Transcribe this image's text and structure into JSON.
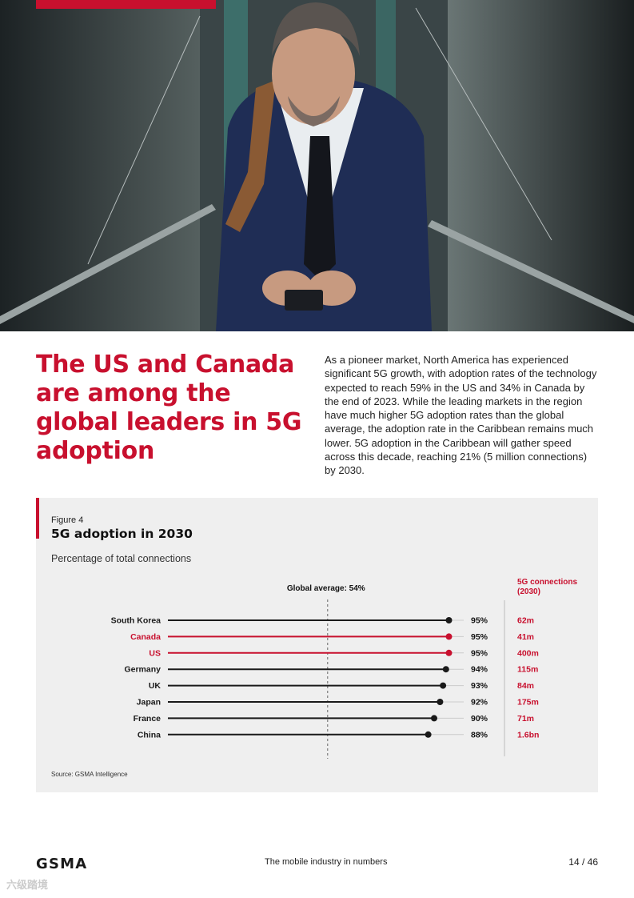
{
  "page": {
    "headline": "The US and Canada are among the global leaders in 5G adoption",
    "intro": "As a pioneer market, North America has experienced significant 5G growth, with adoption rates of the technology expected to reach 59% in the US and 34% in Canada by the end of 2023. While the leading markets in the region have much higher 5G adoption rates than the global average, the adoption rate in the Caribbean remains much lower. 5G adoption in the Caribbean will gather speed across this decade, reaching 21% (5 million connections) by 2030."
  },
  "figure": {
    "label": "Figure 4",
    "title": "5G adoption in 2030",
    "subtitle": "Percentage of total connections",
    "source": "Source: GSMA Intelligence"
  },
  "chart_data": {
    "type": "lollipop",
    "title": "5G adoption in 2030",
    "unit": "%",
    "xlim": [
      0,
      100
    ],
    "reference_line": {
      "label": "Global average: 54%",
      "value": 54
    },
    "connections_header": [
      "5G connections",
      "(2030)"
    ],
    "categories": [
      "South Korea",
      "Canada",
      "US",
      "Germany",
      "UK",
      "Japan",
      "France",
      "China"
    ],
    "values": [
      95,
      95,
      95,
      94,
      93,
      92,
      90,
      88
    ],
    "value_labels": [
      "95%",
      "95%",
      "95%",
      "94%",
      "93%",
      "92%",
      "90%",
      "88%"
    ],
    "connections": [
      "62m",
      "41m",
      "400m",
      "115m",
      "84m",
      "175m",
      "71m",
      "1.6bn"
    ],
    "highlighted": [
      "Canada",
      "US"
    ]
  },
  "footer": {
    "logo": "GSMA",
    "title": "The mobile industry in numbers",
    "page": "14 / 46"
  },
  "watermark": "六级踏境",
  "colors": {
    "accent": "#c8102e",
    "text": "#1a1a1a",
    "panel": "#efefef",
    "track": "#cccccc"
  }
}
